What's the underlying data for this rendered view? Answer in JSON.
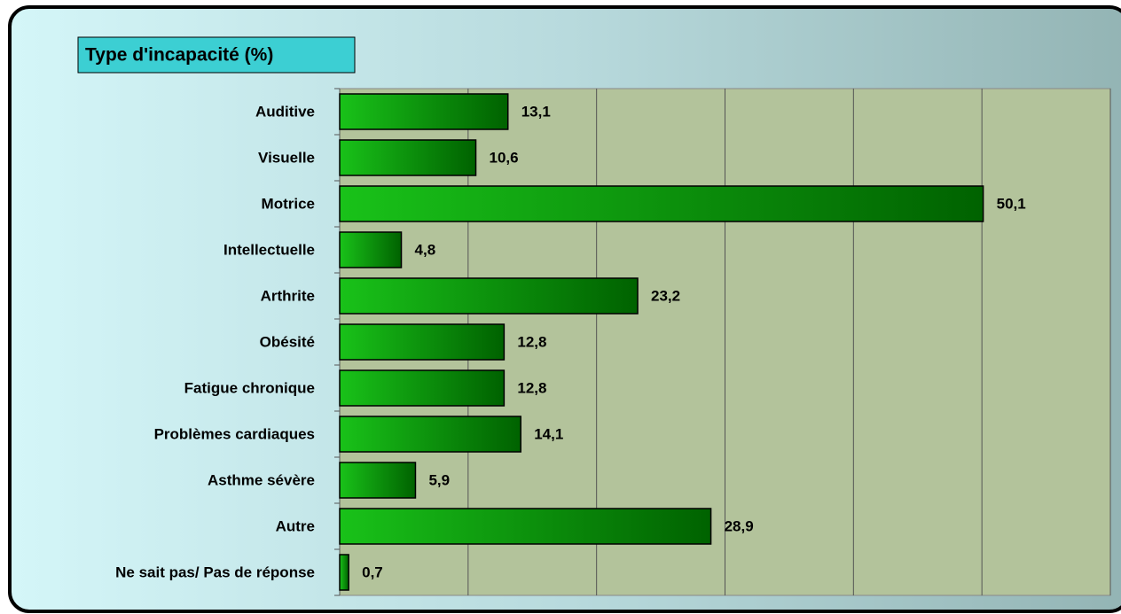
{
  "chart_data": {
    "type": "bar",
    "orientation": "horizontal",
    "title": "Type d'incapacité  (%)",
    "categories": [
      "Auditive",
      "Visuelle",
      "Motrice",
      "Intellectuelle",
      "Arthrite",
      "Obésité",
      "Fatigue chronique",
      "Problèmes cardiaques",
      "Asthme sévère",
      "Autre",
      "Ne sait pas/ Pas de réponse"
    ],
    "values": [
      13.1,
      10.6,
      50.1,
      4.8,
      23.2,
      12.8,
      12.8,
      14.1,
      5.9,
      28.9,
      0.7
    ],
    "value_labels": [
      "13,1",
      "10,6",
      "50,1",
      "4,8",
      "23,2",
      "12,8",
      "12,8",
      "14,1",
      "5,9",
      "28,9",
      "0,7"
    ],
    "color": "#1aa51a",
    "xlim": [
      0,
      60
    ],
    "xticks": [
      0,
      10,
      20,
      30,
      40,
      50,
      60
    ],
    "grid": true
  }
}
